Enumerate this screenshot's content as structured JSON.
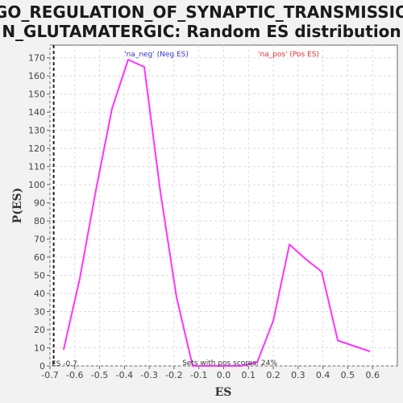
{
  "chart_data": {
    "type": "line",
    "title_lines": [
      "GO_REGULATION_OF_SYNAPTIC_TRANSMISSIO",
      "N_GLUTAMATERGIC: Random ES distribution"
    ],
    "xlabel": "ES",
    "ylabel": "P(ES)",
    "xlim": [
      -0.7,
      0.7
    ],
    "ylim": [
      0,
      177
    ],
    "x_ticks": [
      -0.7,
      -0.6,
      -0.5,
      -0.4,
      -0.3,
      -0.2,
      -0.1,
      0.0,
      0.1,
      0.2,
      0.3,
      0.4,
      0.5,
      0.6
    ],
    "x_tick_labels": [
      "-0.7",
      "-0.6",
      "-0.5",
      "-0.4",
      "-0.3",
      "-0.2",
      "-0.1",
      "0.0",
      "0.1",
      "0.2",
      "0.3",
      "0.4",
      "0.5",
      "0.6"
    ],
    "y_ticks": [
      0,
      10,
      20,
      30,
      40,
      50,
      60,
      70,
      80,
      90,
      100,
      110,
      120,
      130,
      140,
      150,
      160,
      170
    ],
    "grid": true,
    "series": [
      {
        "color": "#ff33ff",
        "x": [
          -0.645,
          -0.58,
          -0.515,
          -0.45,
          -0.385,
          -0.32,
          -0.255,
          -0.19,
          -0.125,
          -0.06,
          0.005,
          0.07,
          0.135,
          0.2,
          0.265,
          0.33,
          0.395,
          0.46,
          0.59
        ],
        "y": [
          9,
          48,
          97,
          142,
          169,
          165,
          96,
          38,
          0,
          0,
          0,
          0,
          2,
          25,
          67,
          59,
          52,
          14,
          8
        ]
      }
    ],
    "annotations": {
      "neg_label": "'na_neg' (Neg ES)",
      "neg_color": "#3333cc",
      "pos_label": "'na_pos' (Pos ES)",
      "pos_color": "#e03030",
      "es_label": "ES -0.7",
      "es_value": -0.685,
      "sets_label": "Sets with pos scores: 24%"
    }
  }
}
